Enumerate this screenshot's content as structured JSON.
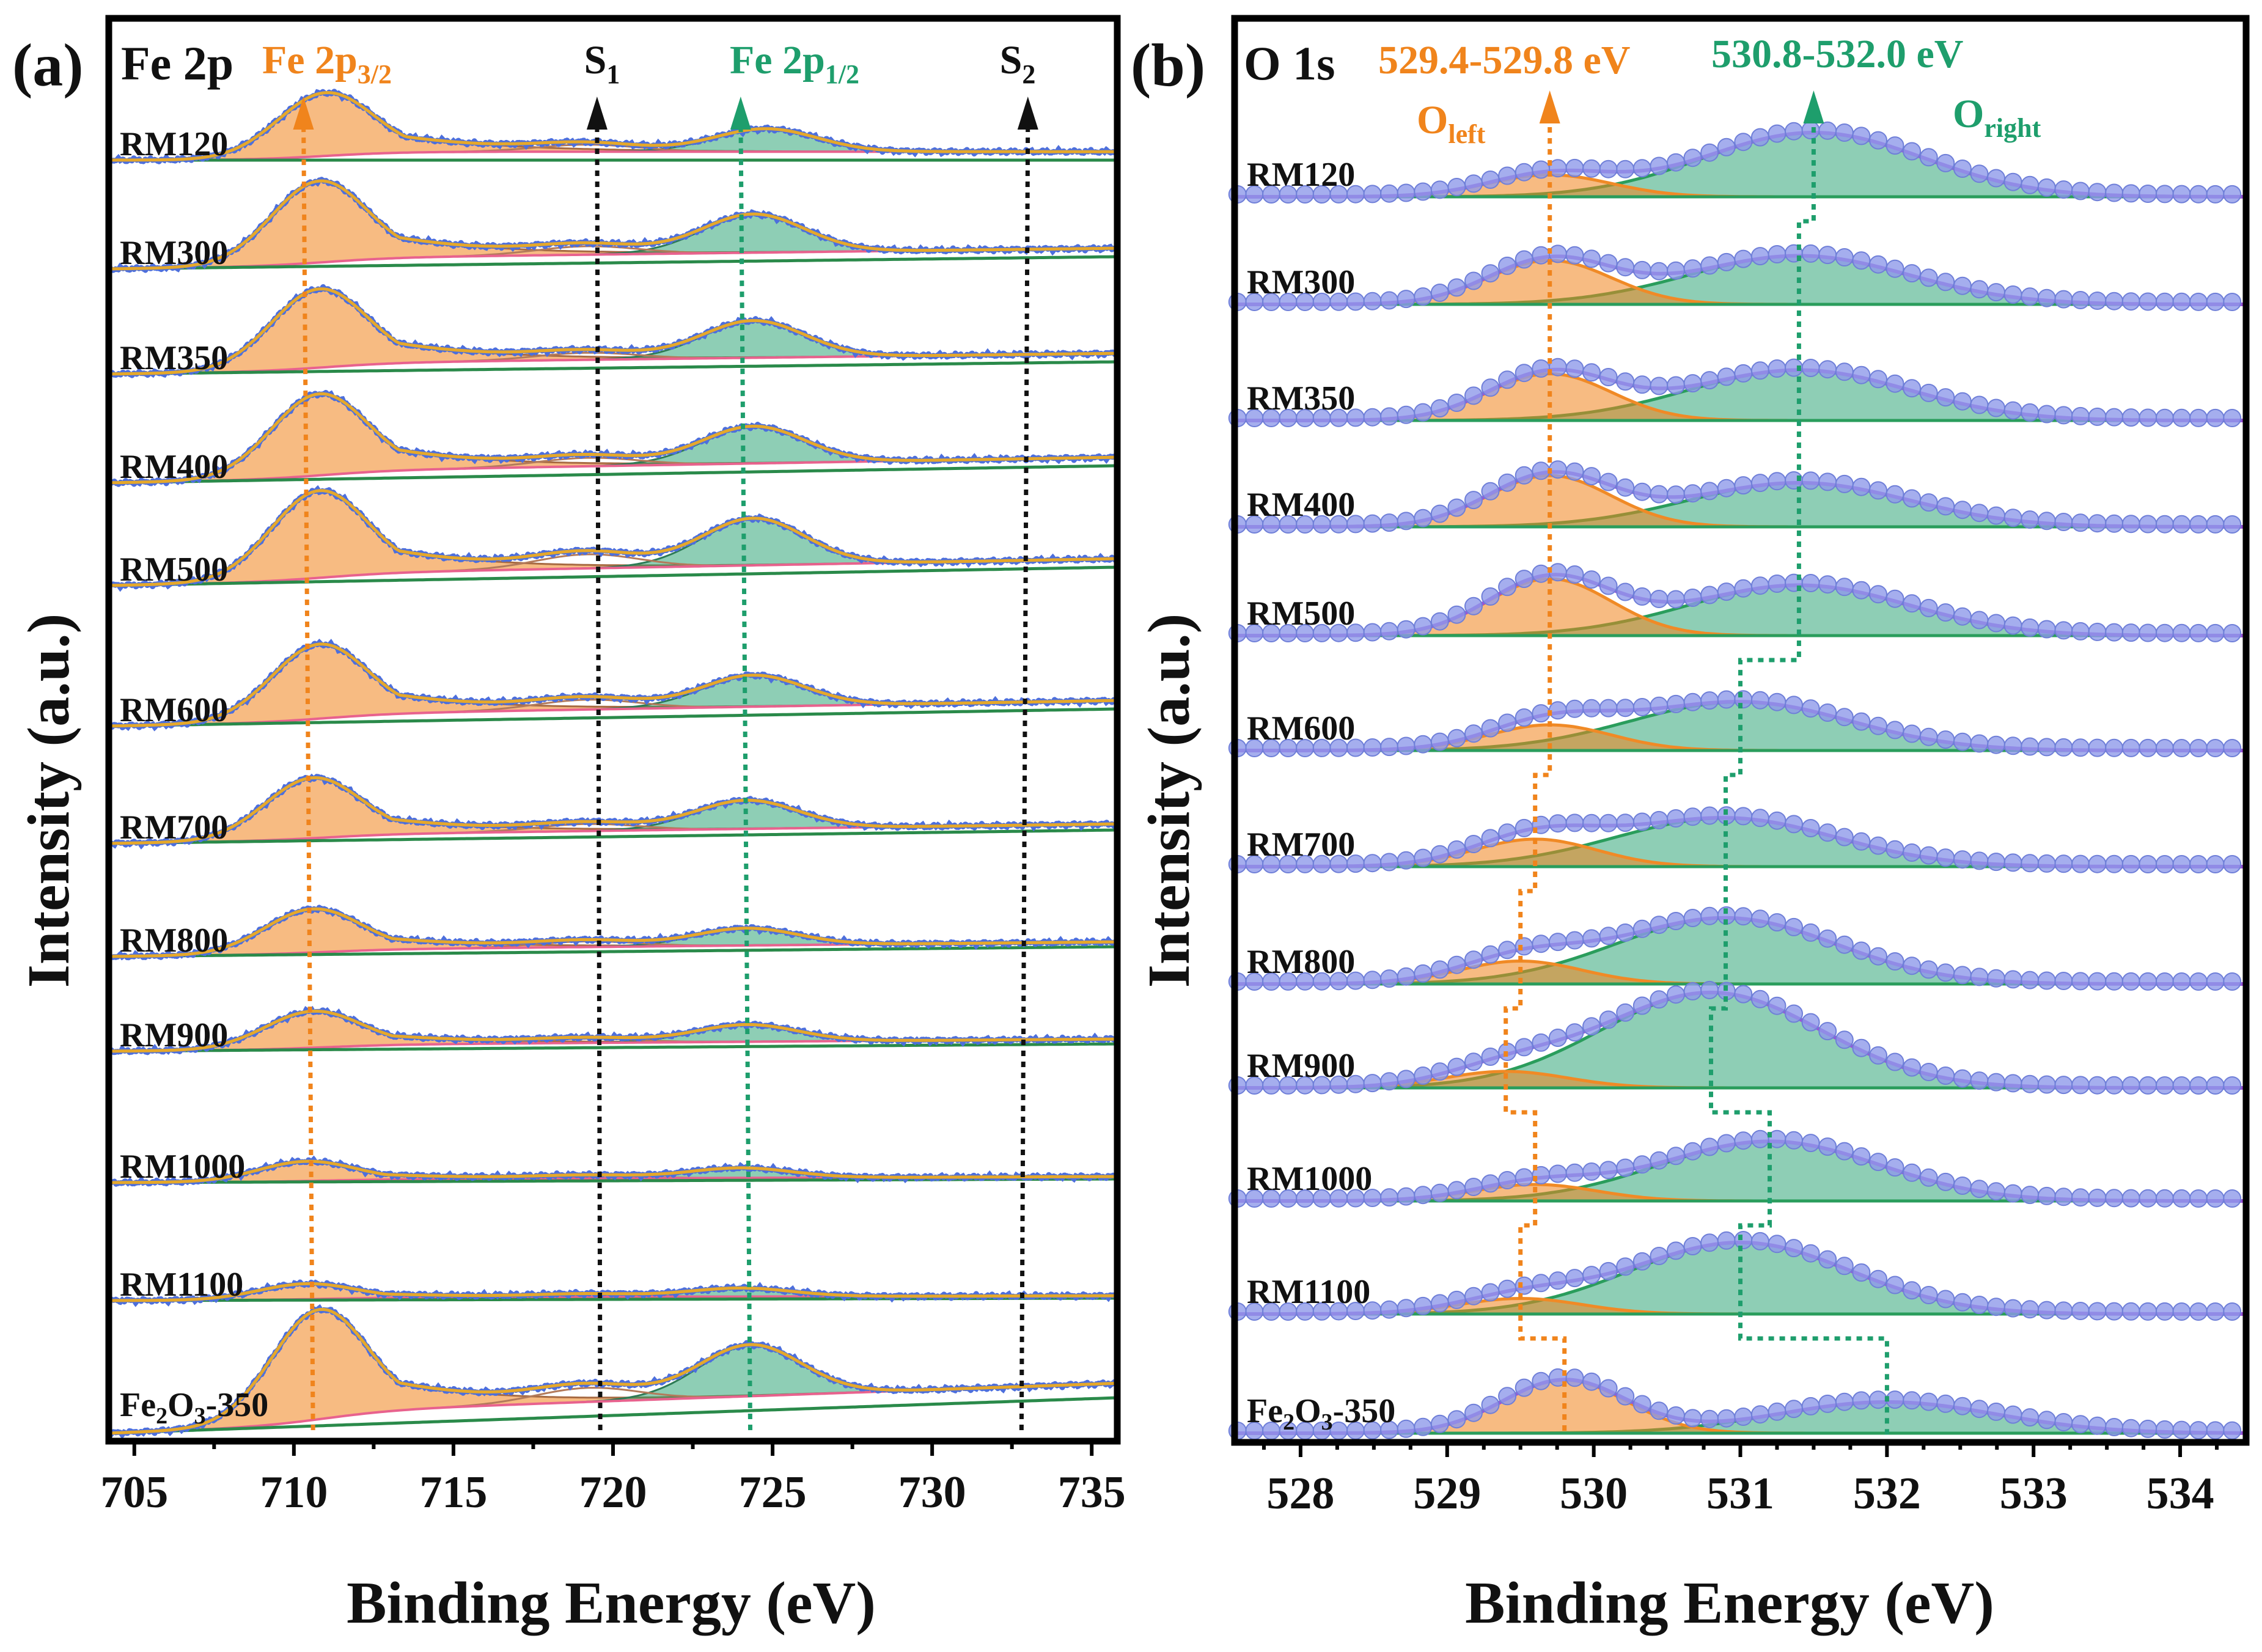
{
  "colors": {
    "fe_3_2": "#f0841c",
    "fe_1_2": "#1e9e6c",
    "satellite": "#111111",
    "data_points": "#4d6fdc",
    "envelope": "#e5a82b",
    "baseline": "#2a8a4a",
    "pink_background": "#e8628e",
    "o_left": "#f0841c",
    "o_right": "#1e9e6c",
    "o_points": "#8f9aea",
    "o_envelope": "#9a52d8"
  },
  "figure_labels": {
    "a": "(a)",
    "b": "(b)"
  },
  "chart_data": [
    {
      "type": "line",
      "panel": "(a)",
      "title": "Fe 2p",
      "xlabel": "Binding Energy (eV)",
      "ylabel": "Intensity (a.u.)",
      "xlim": [
        704.2,
        735.8
      ],
      "xticks": [
        "705",
        "710",
        "715",
        "720",
        "725",
        "730",
        "735"
      ],
      "xtick_values": [
        705,
        710,
        715,
        720,
        725,
        730,
        735
      ],
      "legend": "none",
      "annotations": [
        {
          "main": "Fe 2p",
          "sub": "3/2",
          "color": "#f0841c",
          "x": [
            710.3,
            710.6
          ],
          "arrow_top": true
        },
        {
          "main": "S",
          "sub": "1",
          "color": "#111111",
          "x": [
            719.5,
            719.6
          ],
          "arrow_top": true
        },
        {
          "main": "Fe 2p",
          "sub": "1/2",
          "color": "#1e9e6c",
          "x": [
            724.0,
            724.3
          ],
          "arrow_top": true
        },
        {
          "main": "S",
          "sub": "2",
          "color": "#111111",
          "x": [
            733.0,
            732.8
          ],
          "arrow_top": true
        }
      ],
      "series": [
        {
          "name": "RM120",
          "p32": {
            "c": 711.0,
            "h": 0.45
          },
          "p12": {
            "c": 724.8,
            "h": 0.16
          },
          "sat1": 0.05,
          "tail": 0.07
        },
        {
          "name": "RM300",
          "p32": {
            "c": 710.8,
            "h": 0.58
          },
          "p12": {
            "c": 724.4,
            "h": 0.27
          },
          "sat1": 0.06,
          "tail": 0.07
        },
        {
          "name": "RM350",
          "p32": {
            "c": 710.8,
            "h": 0.56
          },
          "p12": {
            "c": 724.4,
            "h": 0.26
          },
          "sat1": 0.05,
          "tail": 0.07
        },
        {
          "name": "RM400",
          "p32": {
            "c": 710.8,
            "h": 0.58
          },
          "p12": {
            "c": 724.4,
            "h": 0.26
          },
          "sat1": 0.06,
          "tail": 0.07
        },
        {
          "name": "RM500",
          "p32": {
            "c": 710.8,
            "h": 0.62
          },
          "p12": {
            "c": 724.4,
            "h": 0.33
          },
          "sat1": 0.1,
          "tail": 0.07
        },
        {
          "name": "RM600",
          "p32": {
            "c": 710.8,
            "h": 0.53
          },
          "p12": {
            "c": 724.4,
            "h": 0.22
          },
          "sat1": 0.07,
          "tail": 0.07
        },
        {
          "name": "RM700",
          "p32": {
            "c": 710.6,
            "h": 0.43
          },
          "p12": {
            "c": 724.2,
            "h": 0.2
          },
          "sat1": 0.05,
          "tail": 0.05
        },
        {
          "name": "RM800",
          "p32": {
            "c": 710.6,
            "h": 0.31
          },
          "p12": {
            "c": 724.2,
            "h": 0.12
          },
          "sat1": 0.04,
          "tail": 0.04
        },
        {
          "name": "RM900",
          "p32": {
            "c": 710.6,
            "h": 0.26
          },
          "p12": {
            "c": 724.2,
            "h": 0.12
          },
          "sat1": 0.03,
          "tail": 0.04
        },
        {
          "name": "RM1000",
          "p32": {
            "c": 710.4,
            "h": 0.14
          },
          "p12": {
            "c": 724.0,
            "h": 0.07
          },
          "sat1": 0.02,
          "tail": 0.02
        },
        {
          "name": "RM1100",
          "p32": {
            "c": 710.4,
            "h": 0.11
          },
          "p12": {
            "c": 724.0,
            "h": 0.06
          },
          "sat1": 0.02,
          "tail": 0.02
        },
        {
          "name": "Fe2O3-350",
          "p32": {
            "c": 710.8,
            "h": 0.78
          },
          "p12": {
            "c": 724.3,
            "h": 0.36
          },
          "sat1": 0.1,
          "tail": 0.12
        }
      ]
    },
    {
      "type": "line",
      "panel": "(b)",
      "title": "O 1s",
      "xlabel": "Binding Energy (eV)",
      "ylabel": "Intensity (a.u.)",
      "xlim": [
        527.55,
        534.45
      ],
      "xticks": [
        "528",
        "529",
        "530",
        "531",
        "532",
        "533",
        "534"
      ],
      "xtick_values": [
        528,
        529,
        530,
        531,
        532,
        533,
        534
      ],
      "legend": "none",
      "annotations": [
        {
          "text": "529.4-529.8 eV",
          "color": "#f0841c"
        },
        {
          "text": "530.8-532.0 eV",
          "color": "#1e9e6c"
        },
        {
          "main": "O",
          "sub": "left",
          "color": "#f0841c"
        },
        {
          "main": "O",
          "sub": "right",
          "color": "#1e9e6c"
        }
      ],
      "series": [
        {
          "name": "RM120",
          "left": {
            "c": 529.7,
            "h": 0.24
          },
          "right": {
            "c": 531.5,
            "h": 0.7
          }
        },
        {
          "name": "RM300",
          "left": {
            "c": 529.7,
            "h": 0.48
          },
          "right": {
            "c": 531.4,
            "h": 0.53
          }
        },
        {
          "name": "RM350",
          "left": {
            "c": 529.7,
            "h": 0.51
          },
          "right": {
            "c": 531.4,
            "h": 0.55
          }
        },
        {
          "name": "RM400",
          "left": {
            "c": 529.7,
            "h": 0.56
          },
          "right": {
            "c": 531.4,
            "h": 0.48
          }
        },
        {
          "name": "RM500",
          "left": {
            "c": 529.7,
            "h": 0.62
          },
          "right": {
            "c": 531.4,
            "h": 0.55
          }
        },
        {
          "name": "RM600",
          "left": {
            "c": 529.7,
            "h": 0.28
          },
          "right": {
            "c": 531.0,
            "h": 0.53
          }
        },
        {
          "name": "RM700",
          "left": {
            "c": 529.6,
            "h": 0.3
          },
          "right": {
            "c": 530.9,
            "h": 0.53
          }
        },
        {
          "name": "RM800",
          "left": {
            "c": 529.5,
            "h": 0.25
          },
          "right": {
            "c": 530.9,
            "h": 0.72
          }
        },
        {
          "name": "RM900",
          "left": {
            "c": 529.4,
            "h": 0.18
          },
          "right": {
            "c": 530.8,
            "h": 1.04
          }
        },
        {
          "name": "RM1000",
          "left": {
            "c": 529.6,
            "h": 0.18
          },
          "right": {
            "c": 531.2,
            "h": 0.65
          }
        },
        {
          "name": "RM1100",
          "left": {
            "c": 529.5,
            "h": 0.17
          },
          "right": {
            "c": 531.0,
            "h": 0.78
          }
        },
        {
          "name": "Fe2O3-350",
          "left": {
            "c": 529.8,
            "h": 0.58
          },
          "right": {
            "c": 532.0,
            "h": 0.34
          }
        }
      ],
      "guides": {
        "left_peak_path": [
          529.7,
          529.7,
          529.7,
          529.7,
          529.7,
          529.7,
          529.6,
          529.5,
          529.4,
          529.6,
          529.5,
          529.8
        ],
        "right_peak_path": [
          531.5,
          531.4,
          531.4,
          531.4,
          531.4,
          531.0,
          530.9,
          530.9,
          530.8,
          531.2,
          531.0,
          532.0
        ]
      }
    }
  ]
}
